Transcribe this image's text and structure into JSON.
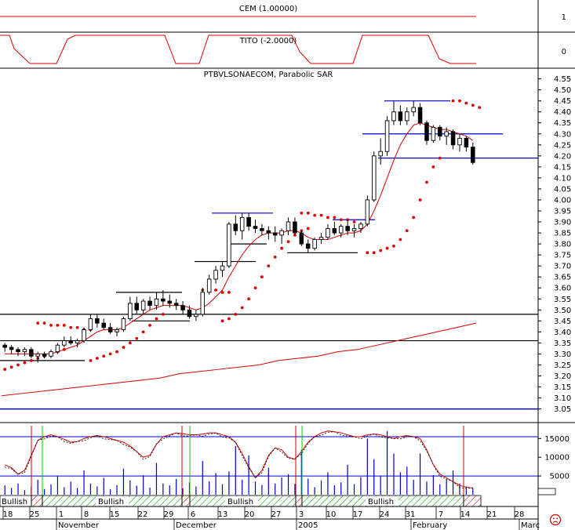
{
  "panels": {
    "cem_title": "CEM (1.00000)",
    "tito_title": "TITO (-2.0000)",
    "price_title": "PTBVLSONAECOM, Parabolic SAR",
    "cem_tick": "1",
    "tito_tick": "0"
  },
  "colors": {
    "price_line": "#d40000",
    "sar": "#e00000",
    "level_blue": "#0000cc",
    "volume": "#0000cc",
    "oscillator_band": "#0000cc",
    "bullish_fill": "#00a000",
    "bearish_marker": "#cc0000",
    "bullish_marker": "#00cc00"
  },
  "chart_data": [
    {
      "type": "candlestick",
      "title": "PTBVLSONAECOM, Parabolic SAR",
      "y_ticks": [
        "4.55",
        "4.50",
        "4.45",
        "4.40",
        "4.35",
        "4.30",
        "4.25",
        "4.20",
        "4.15",
        "4.10",
        "4.05",
        "4.00",
        "3.95",
        "3.90",
        "3.85",
        "3.80",
        "3.75",
        "3.70",
        "3.65",
        "3.60",
        "3.55",
        "3.50",
        "3.45",
        "3.40",
        "3.35",
        "3.30",
        "3.25",
        "3.20",
        "3.15",
        "3.10",
        "3.05"
      ],
      "ylim": [
        3.02,
        4.57
      ],
      "x_ticks": [
        "18",
        "25",
        "1",
        "8",
        "15",
        "22",
        "29",
        "6",
        "13",
        "20",
        "27",
        "3",
        "10",
        "17",
        "24",
        "31",
        "7",
        "14",
        "21",
        "28"
      ],
      "month_labels": [
        "November",
        "December",
        "2005",
        "February",
        "Marc"
      ],
      "candles": [
        [
          3.34,
          3.35,
          3.31,
          3.33
        ],
        [
          3.33,
          3.34,
          3.3,
          3.32
        ],
        [
          3.32,
          3.33,
          3.29,
          3.31
        ],
        [
          3.31,
          3.33,
          3.29,
          3.32
        ],
        [
          3.32,
          3.33,
          3.28,
          3.29
        ],
        [
          3.29,
          3.31,
          3.26,
          3.3
        ],
        [
          3.3,
          3.31,
          3.28,
          3.29
        ],
        [
          3.29,
          3.32,
          3.28,
          3.31
        ],
        [
          3.31,
          3.35,
          3.3,
          3.34
        ],
        [
          3.34,
          3.38,
          3.33,
          3.36
        ],
        [
          3.36,
          3.38,
          3.34,
          3.35
        ],
        [
          3.35,
          3.37,
          3.33,
          3.36
        ],
        [
          3.36,
          3.42,
          3.35,
          3.41
        ],
        [
          3.41,
          3.48,
          3.4,
          3.46
        ],
        [
          3.46,
          3.48,
          3.42,
          3.44
        ],
        [
          3.44,
          3.46,
          3.41,
          3.42
        ],
        [
          3.42,
          3.44,
          3.39,
          3.4
        ],
        [
          3.4,
          3.42,
          3.38,
          3.41
        ],
        [
          3.41,
          3.47,
          3.4,
          3.46
        ],
        [
          3.46,
          3.56,
          3.45,
          3.53
        ],
        [
          3.53,
          3.56,
          3.48,
          3.5
        ],
        [
          3.5,
          3.55,
          3.48,
          3.54
        ],
        [
          3.54,
          3.56,
          3.5,
          3.52
        ],
        [
          3.52,
          3.58,
          3.5,
          3.55
        ],
        [
          3.55,
          3.59,
          3.52,
          3.54
        ],
        [
          3.54,
          3.57,
          3.51,
          3.53
        ],
        [
          3.53,
          3.55,
          3.5,
          3.52
        ],
        [
          3.52,
          3.54,
          3.48,
          3.5
        ],
        [
          3.5,
          3.52,
          3.46,
          3.47
        ],
        [
          3.47,
          3.5,
          3.45,
          3.48
        ],
        [
          3.48,
          3.6,
          3.47,
          3.58
        ],
        [
          3.58,
          3.66,
          3.57,
          3.64
        ],
        [
          3.64,
          3.7,
          3.62,
          3.68
        ],
        [
          3.68,
          3.72,
          3.65,
          3.7
        ],
        [
          3.7,
          3.9,
          3.69,
          3.89
        ],
        [
          3.89,
          3.93,
          3.84,
          3.86
        ],
        [
          3.86,
          3.94,
          3.82,
          3.92
        ],
        [
          3.92,
          3.94,
          3.86,
          3.88
        ],
        [
          3.88,
          3.91,
          3.85,
          3.87
        ],
        [
          3.87,
          3.89,
          3.84,
          3.86
        ],
        [
          3.86,
          3.88,
          3.82,
          3.85
        ],
        [
          3.85,
          3.88,
          3.81,
          3.84
        ],
        [
          3.84,
          3.87,
          3.8,
          3.86
        ],
        [
          3.86,
          3.92,
          3.84,
          3.9
        ],
        [
          3.9,
          3.92,
          3.84,
          3.85
        ],
        [
          3.85,
          3.86,
          3.79,
          3.8
        ],
        [
          3.8,
          3.82,
          3.76,
          3.78
        ],
        [
          3.78,
          3.83,
          3.77,
          3.82
        ],
        [
          3.82,
          3.85,
          3.8,
          3.83
        ],
        [
          3.83,
          3.89,
          3.82,
          3.87
        ],
        [
          3.87,
          3.9,
          3.84,
          3.85
        ],
        [
          3.85,
          3.89,
          3.83,
          3.88
        ],
        [
          3.88,
          3.91,
          3.84,
          3.86
        ],
        [
          3.86,
          3.89,
          3.83,
          3.87
        ],
        [
          3.87,
          3.9,
          3.85,
          3.89
        ],
        [
          3.89,
          4.02,
          3.88,
          4.0
        ],
        [
          4.0,
          4.22,
          3.99,
          4.2
        ],
        [
          4.2,
          4.28,
          4.16,
          4.22
        ],
        [
          4.22,
          4.38,
          4.2,
          4.36
        ],
        [
          4.36,
          4.45,
          4.34,
          4.4
        ],
        [
          4.4,
          4.43,
          4.34,
          4.36
        ],
        [
          4.36,
          4.42,
          4.34,
          4.4
        ],
        [
          4.4,
          4.45,
          4.38,
          4.42
        ],
        [
          4.42,
          4.44,
          4.34,
          4.35
        ],
        [
          4.35,
          4.36,
          4.25,
          4.27
        ],
        [
          4.27,
          4.34,
          4.26,
          4.33
        ],
        [
          4.33,
          4.34,
          4.27,
          4.29
        ],
        [
          4.29,
          4.33,
          4.25,
          4.31
        ],
        [
          4.31,
          4.32,
          4.23,
          4.25
        ],
        [
          4.25,
          4.3,
          4.22,
          4.28
        ],
        [
          4.28,
          4.29,
          4.22,
          4.24
        ],
        [
          4.24,
          4.26,
          4.16,
          4.17
        ]
      ],
      "sar_segments": [
        [
          3.23,
          3.24,
          3.25,
          3.26,
          3.27,
          3.28,
          3.29,
          3.3,
          3.31,
          3.32
        ],
        [
          3.44,
          3.44,
          3.43,
          3.43,
          3.43,
          3.42,
          3.42,
          3.41,
          3.41
        ],
        [
          3.27,
          3.28,
          3.29,
          3.3,
          3.31,
          3.33,
          3.35,
          3.37,
          3.4,
          3.43,
          3.46,
          3.48
        ],
        [
          3.59,
          3.59,
          3.59,
          3.58,
          3.58
        ],
        [
          3.45,
          3.46,
          3.48,
          3.51,
          3.55,
          3.6,
          3.65,
          3.7,
          3.74,
          3.78,
          3.81,
          3.84,
          3.86,
          3.87
        ],
        [
          3.94,
          3.94,
          3.93,
          3.93,
          3.92,
          3.92,
          3.91,
          3.91,
          3.9
        ],
        [
          3.76,
          3.76,
          3.77,
          3.78,
          3.79,
          3.82,
          3.86,
          3.92,
          4.0,
          4.08,
          4.15,
          4.19
        ],
        [
          4.45,
          4.45,
          4.44,
          4.43,
          4.42
        ]
      ],
      "ma_short": [
        3.3,
        3.3,
        3.3,
        3.3,
        3.3,
        3.3,
        3.3,
        3.3,
        3.31,
        3.32,
        3.33,
        3.34,
        3.36,
        3.38,
        3.4,
        3.41,
        3.41,
        3.41,
        3.42,
        3.44,
        3.46,
        3.48,
        3.5,
        3.51,
        3.52,
        3.52,
        3.52,
        3.52,
        3.51,
        3.5,
        3.51,
        3.53,
        3.56,
        3.59,
        3.65,
        3.7,
        3.75,
        3.79,
        3.82,
        3.84,
        3.85,
        3.85,
        3.85,
        3.86,
        3.86,
        3.85,
        3.83,
        3.82,
        3.82,
        3.82,
        3.83,
        3.84,
        3.85,
        3.85,
        3.86,
        3.89,
        3.95,
        4.02,
        4.1,
        4.18,
        4.25,
        4.3,
        4.34,
        4.35,
        4.34,
        4.33,
        4.32,
        4.32,
        4.31,
        4.3,
        4.29,
        4.27
      ],
      "ma_long": [
        3.11,
        3.12,
        3.13,
        3.14,
        3.15,
        3.16,
        3.17,
        3.18,
        3.19,
        3.21,
        3.22,
        3.23,
        3.24,
        3.25,
        3.27,
        3.28,
        3.29,
        3.31,
        3.32,
        3.34,
        3.36,
        3.38,
        3.4,
        3.42,
        3.44
      ],
      "horizontal_levels": [
        {
          "y": 4.45,
          "color": "blue"
        },
        {
          "y": 4.3,
          "color": "blue"
        },
        {
          "y": 4.19,
          "color": "blue"
        },
        {
          "y": 3.94,
          "color": "blue"
        },
        {
          "y": 3.91,
          "color": "blue"
        },
        {
          "y": 3.05,
          "color": "blue"
        },
        {
          "y": 3.8,
          "color": "black"
        },
        {
          "y": 3.72,
          "color": "black"
        },
        {
          "y": 3.58,
          "color": "black"
        },
        {
          "y": 3.45,
          "color": "black"
        },
        {
          "y": 3.48,
          "color": "black"
        },
        {
          "y": 3.36,
          "color": "black"
        },
        {
          "y": 3.27,
          "color": "black"
        },
        {
          "y": 3.76,
          "color": "black"
        }
      ]
    },
    {
      "type": "bar",
      "title": "",
      "y_ticks": [
        "15000",
        "10000",
        "5000"
      ],
      "ylim": [
        0,
        18000
      ],
      "volumes": [
        2500,
        1800,
        3000,
        1200,
        2200,
        4000,
        1500,
        2800,
        5000,
        2000,
        3500,
        1800,
        6500,
        3000,
        2200,
        4500,
        1500,
        2600,
        7000,
        3800,
        2400,
        5200,
        1900,
        8500,
        3000,
        2500,
        4200,
        1700,
        3300,
        2200,
        9000,
        3600,
        5800,
        2800,
        6200,
        13000,
        4000,
        10500,
        3500,
        2600,
        7200,
        3000,
        4600,
        5500,
        2900,
        12000,
        4300,
        2000,
        3800,
        6000,
        2500,
        3300,
        8000,
        2800,
        4700,
        15000,
        9500,
        5000,
        17000,
        11000,
        6000,
        7500,
        4000,
        11000,
        3500,
        5200,
        2800,
        4100,
        6500,
        3000,
        2200,
        1800
      ],
      "oscillator_a": [
        8000,
        7200,
        5500,
        6500,
        10500,
        14500,
        15500,
        16000,
        15500,
        14800,
        14000,
        14200,
        15000,
        15500,
        15800,
        15500,
        15000,
        14500,
        14000,
        13000,
        11500,
        10000,
        10500,
        13500,
        15500,
        16000,
        16500,
        16300,
        16000,
        16000,
        16200,
        16500,
        16500,
        16000,
        15500,
        14000,
        11000,
        7500,
        4500,
        6500,
        10500,
        12500,
        12000,
        10000,
        9500,
        11500,
        14000,
        15500,
        16500,
        17000,
        16800,
        16500,
        16000,
        15500,
        15500,
        16000,
        16200,
        16000,
        15500,
        15000,
        15500,
        15800,
        15500,
        15000,
        12000,
        8000,
        5500,
        4500,
        3500,
        2500,
        2000,
        1800
      ],
      "bands": [
        15500,
        5000
      ],
      "states": [
        "Bullish",
        "Bullish",
        "Bullish",
        "Bullish"
      ]
    }
  ],
  "indicator_labels": {
    "state_1": "Bullish",
    "state_2": "Bullish",
    "state_3": "Bullish",
    "state_4": "Bullish"
  }
}
